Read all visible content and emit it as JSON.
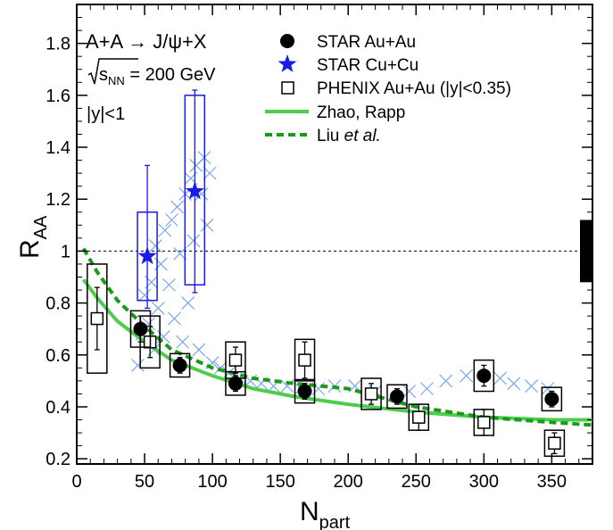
{
  "chart_data": {
    "type": "scatter",
    "xlabel_main": "N",
    "xlabel_sub": "part",
    "ylabel_main": "R",
    "ylabel_sub": "AA",
    "xlim": [
      0,
      380
    ],
    "ylim": [
      0.18,
      1.95
    ],
    "xticks": [
      0,
      50,
      100,
      150,
      200,
      250,
      300,
      350
    ],
    "yticks": [
      0.2,
      0.4,
      0.6,
      0.8,
      1.0,
      1.2,
      1.4,
      1.6,
      1.8
    ],
    "ytick_labels": [
      "0.2",
      "0.4",
      "0.6",
      "0.8",
      "1",
      "1.2",
      "1.4",
      "1.6",
      "1.8"
    ],
    "reference_line": 1.0,
    "global_uncertainty": [
      0.88,
      1.12
    ],
    "annotations": {
      "reaction": "A+A → J/ψ+X",
      "energy_symbol": "s",
      "energy_sub": "NN",
      "energy_value": " = 200 GeV",
      "rapidity": "|y|<1"
    },
    "legend": {
      "star_auau": "STAR Au+Au",
      "star_cucu": "STAR Cu+Cu",
      "phenix": "PHENIX Au+Au (|y|<0.35)",
      "zhao": "Zhao, Rapp",
      "liu_prefix": "Liu ",
      "liu_italic": "et al.",
      "liu_suffix": "."
    },
    "colors": {
      "star_auau": "#000000",
      "star_cucu": "#1a1ae6",
      "phenix": "#000000",
      "model": "#4dcc4d",
      "crosses": "#7aa6ee"
    },
    "series": [
      {
        "name": "STAR Au+Au",
        "marker": "filled-circle",
        "points": [
          {
            "x": 47,
            "y": 0.7,
            "err": 0.05,
            "sys": 0.07
          },
          {
            "x": 76,
            "y": 0.56,
            "err": 0.03,
            "sys": 0.045
          },
          {
            "x": 117,
            "y": 0.49,
            "err": 0.03,
            "sys": 0.045
          },
          {
            "x": 168,
            "y": 0.46,
            "err": 0.03,
            "sys": 0.045
          },
          {
            "x": 236,
            "y": 0.44,
            "err": 0.03,
            "sys": 0.045
          },
          {
            "x": 300,
            "y": 0.52,
            "err": 0.04,
            "sys": 0.06
          },
          {
            "x": 350,
            "y": 0.43,
            "err": 0.03,
            "sys": 0.045
          }
        ]
      },
      {
        "name": "STAR Cu+Cu",
        "marker": "star",
        "points": [
          {
            "x": 52,
            "y": 0.98,
            "err_low": 0.2,
            "err_high": 0.35,
            "sys_low": 0.17,
            "sys_high": 0.17
          },
          {
            "x": 87,
            "y": 1.23,
            "err_low": 0.39,
            "err_high": 0.39,
            "sys_low": 0.36,
            "sys_high": 0.37
          }
        ]
      },
      {
        "name": "PHENIX Au+Au (|y|<0.35)",
        "marker": "open-square",
        "points": [
          {
            "x": 15,
            "y": 0.74,
            "err": 0.12,
            "sys": 0.21
          },
          {
            "x": 54,
            "y": 0.65,
            "err": 0.06,
            "sys": 0.1
          },
          {
            "x": 117,
            "y": 0.58,
            "err": 0.05,
            "sys": 0.07
          },
          {
            "x": 168,
            "y": 0.58,
            "err": 0.07,
            "sys": 0.08
          },
          {
            "x": 217,
            "y": 0.45,
            "err": 0.04,
            "sys": 0.06
          },
          {
            "x": 252,
            "y": 0.36,
            "err": 0.05,
            "sys": 0.05
          },
          {
            "x": 300,
            "y": 0.34,
            "err": 0.05,
            "sys": 0.05
          },
          {
            "x": 352,
            "y": 0.26,
            "err": 0.04,
            "sys": 0.05
          }
        ]
      },
      {
        "name": "Zhao, Rapp",
        "style": "solid-line",
        "x": [
          5,
          15,
          30,
          50,
          70,
          100,
          130,
          160,
          200,
          250,
          300,
          350,
          380
        ],
        "y": [
          0.89,
          0.82,
          0.73,
          0.65,
          0.58,
          0.52,
          0.47,
          0.44,
          0.41,
          0.38,
          0.36,
          0.35,
          0.35
        ]
      },
      {
        "name": "Liu et al.",
        "style": "dashed-line",
        "x": [
          5,
          15,
          30,
          50,
          70,
          100,
          130,
          160,
          200,
          250,
          300,
          350,
          380
        ],
        "y": [
          1.01,
          0.92,
          0.81,
          0.71,
          0.62,
          0.55,
          0.51,
          0.49,
          0.47,
          0.4,
          0.36,
          0.34,
          0.33
        ]
      },
      {
        "marker": "cross",
        "points": [
          {
            "x": 45,
            "y": 0.56
          },
          {
            "x": 48,
            "y": 0.68
          },
          {
            "x": 50,
            "y": 0.83
          },
          {
            "x": 53,
            "y": 0.72
          },
          {
            "x": 55,
            "y": 0.88
          },
          {
            "x": 57,
            "y": 0.62
          },
          {
            "x": 58,
            "y": 1.02
          },
          {
            "x": 60,
            "y": 0.78
          },
          {
            "x": 62,
            "y": 0.95
          },
          {
            "x": 64,
            "y": 0.67
          },
          {
            "x": 65,
            "y": 1.08
          },
          {
            "x": 68,
            "y": 0.87
          },
          {
            "x": 70,
            "y": 1.12
          },
          {
            "x": 72,
            "y": 0.74
          },
          {
            "x": 74,
            "y": 1.17
          },
          {
            "x": 76,
            "y": 0.99
          },
          {
            "x": 78,
            "y": 0.65
          },
          {
            "x": 80,
            "y": 1.22
          },
          {
            "x": 82,
            "y": 0.8
          },
          {
            "x": 84,
            "y": 1.28
          },
          {
            "x": 86,
            "y": 1.04
          },
          {
            "x": 88,
            "y": 1.33
          },
          {
            "x": 90,
            "y": 0.62
          },
          {
            "x": 92,
            "y": 1.22
          },
          {
            "x": 94,
            "y": 1.36
          },
          {
            "x": 96,
            "y": 1.1
          },
          {
            "x": 98,
            "y": 1.3
          },
          {
            "x": 100,
            "y": 0.57
          },
          {
            "x": 106,
            "y": 0.55
          },
          {
            "x": 112,
            "y": 0.53
          },
          {
            "x": 120,
            "y": 0.51
          },
          {
            "x": 128,
            "y": 0.5
          },
          {
            "x": 136,
            "y": 0.49
          },
          {
            "x": 145,
            "y": 0.48
          },
          {
            "x": 155,
            "y": 0.48
          },
          {
            "x": 165,
            "y": 0.47
          },
          {
            "x": 178,
            "y": 0.47
          },
          {
            "x": 190,
            "y": 0.48
          },
          {
            "x": 205,
            "y": 0.48
          },
          {
            "x": 220,
            "y": 0.46
          },
          {
            "x": 245,
            "y": 0.46
          },
          {
            "x": 258,
            "y": 0.47
          },
          {
            "x": 272,
            "y": 0.5
          },
          {
            "x": 287,
            "y": 0.52
          },
          {
            "x": 312,
            "y": 0.51
          },
          {
            "x": 322,
            "y": 0.49
          },
          {
            "x": 335,
            "y": 0.48
          },
          {
            "x": 347,
            "y": 0.47
          }
        ]
      }
    ]
  }
}
